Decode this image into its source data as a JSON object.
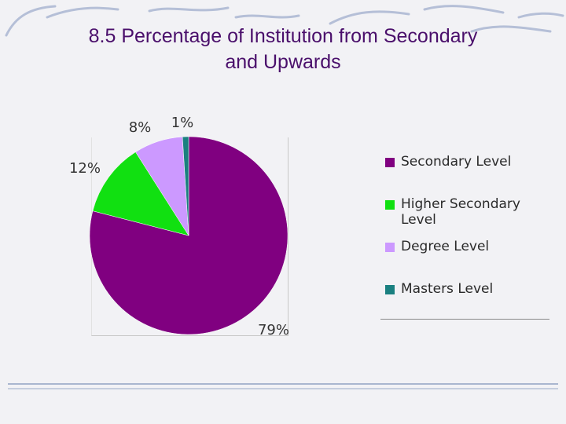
{
  "chart_data": {
    "type": "pie",
    "title": "8.5 Percentage of Institution from Secondary and Upwards",
    "title_lines": [
      "8.5 Percentage of Institution from Secondary",
      "and Upwards"
    ],
    "categories": [
      "Secondary Level",
      "Higher Secondary Level",
      "Degree Level",
      "Masters Level"
    ],
    "values": [
      79,
      12,
      8,
      1
    ],
    "labels": [
      "79%",
      "12%",
      "8%",
      "1%"
    ],
    "colors": [
      "#800080",
      "#11e011",
      "#cc99ff",
      "#1a8080"
    ],
    "legend_position": "right"
  }
}
